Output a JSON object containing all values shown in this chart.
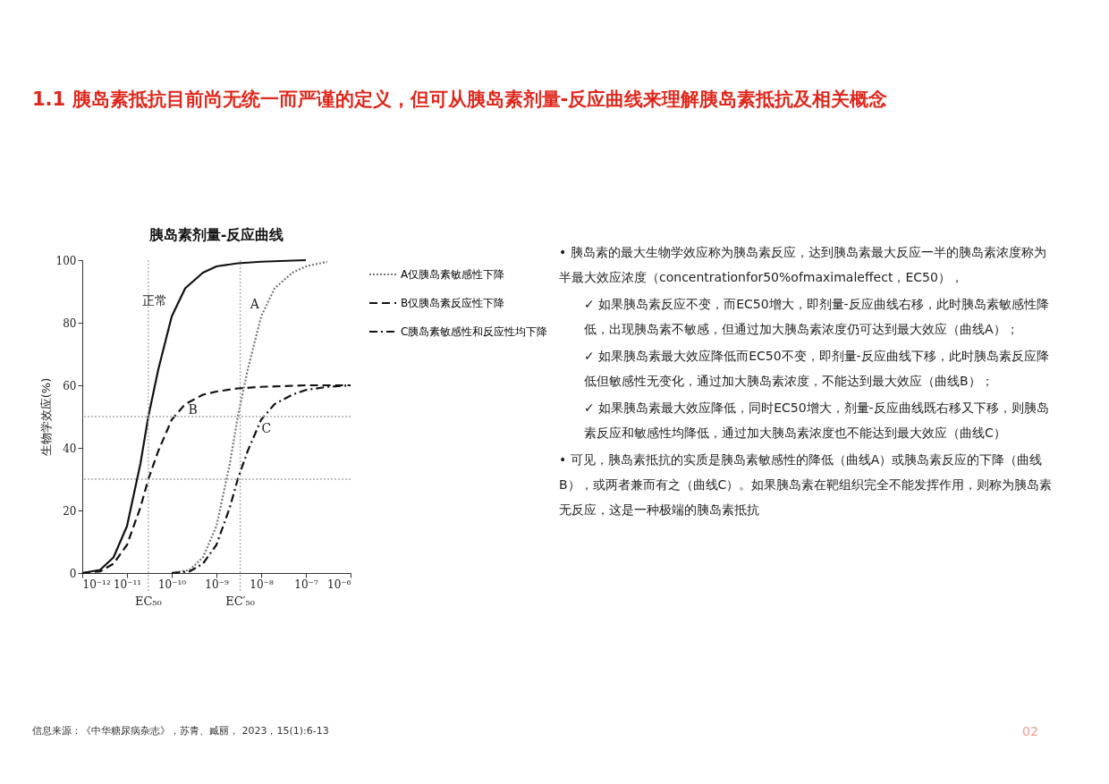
{
  "chart_data": {
    "type": "line",
    "title": "胰岛素剂量-反应曲线",
    "ylabel": "生物学效应(%)",
    "xlim": [
      1e-12,
      1e-06
    ],
    "xticks": [
      {
        "value": 1e-12,
        "label": "10⁻¹²"
      },
      {
        "value": 1e-11,
        "label": "10⁻¹¹"
      },
      {
        "value": 1e-10,
        "label": "10⁻¹⁰"
      },
      {
        "value": 1e-09,
        "label": "10⁻⁹"
      },
      {
        "value": 1e-08,
        "label": "10⁻⁸"
      },
      {
        "value": 1e-07,
        "label": "10⁻⁷"
      },
      {
        "value": 1e-06,
        "label": "10⁻⁶"
      }
    ],
    "ylim": [
      0,
      100
    ],
    "yticks": [
      0,
      20,
      40,
      60,
      80,
      100
    ],
    "log": "x",
    "grid": false,
    "legend": "right",
    "marker": "none",
    "series": [
      {
        "color": "#111111",
        "line_style": "solid",
        "x": [
          1e-12,
          2.5e-12,
          5e-12,
          1e-11,
          2e-11,
          3e-11,
          5e-11,
          1e-10,
          2e-10,
          5e-10,
          1e-09,
          3e-09,
          1e-08,
          1e-07
        ],
        "values": [
          0,
          1,
          5,
          15,
          35,
          50,
          65,
          82,
          91,
          96,
          98,
          99,
          99.5,
          100
        ]
      },
      {
        "name": "A仅胰岛素敏感性下降",
        "color": "#777777",
        "line_style": "dotted",
        "x": [
          1e-10,
          2.5e-10,
          5e-10,
          1e-09,
          2e-09,
          3e-09,
          5e-09,
          1e-08,
          2e-08,
          5e-08,
          1e-07,
          3e-07
        ],
        "values": [
          0,
          1,
          5,
          15,
          35,
          50,
          65,
          82,
          91,
          96,
          98,
          99.5
        ]
      },
      {
        "name": "B仅胰岛素反应性下降",
        "color": "#111111",
        "line_style": "dashed",
        "x": [
          1e-12,
          2.5e-12,
          5e-12,
          1e-11,
          2e-11,
          3e-11,
          5e-11,
          1e-10,
          2e-10,
          5e-10,
          1e-09,
          3e-09,
          1e-08,
          1e-07,
          1e-06
        ],
        "values": [
          0,
          0.5,
          3,
          9,
          21,
          30,
          39,
          49,
          54,
          57,
          58,
          59,
          59.5,
          60,
          60
        ]
      },
      {
        "name": "C胰岛素敏感性和反应性均下降",
        "color": "#111111",
        "line_style": "dashdot",
        "x": [
          1e-10,
          2.5e-10,
          5e-10,
          1e-09,
          2e-09,
          3e-09,
          5e-09,
          1e-08,
          2e-08,
          5e-08,
          1e-07,
          3e-07,
          1e-06
        ],
        "values": [
          0,
          0.5,
          3,
          9,
          21,
          30,
          39,
          49,
          54,
          57,
          58.5,
          59.5,
          60
        ]
      }
    ],
    "ref_lines": [
      {
        "axis": "y",
        "value": 50,
        "color": "#aaaaaa",
        "line_style": "dotted"
      },
      {
        "axis": "y",
        "value": 30,
        "color": "#aaaaaa",
        "line_style": "dotted"
      },
      {
        "axis": "x",
        "value": 3e-11,
        "label": "EC₅₀",
        "color": "#aaaaaa",
        "line_style": "dotted"
      },
      {
        "axis": "x",
        "value": 3.4e-09,
        "label": "EC′₅₀",
        "color": "#aaaaaa",
        "line_style": "dotted"
      }
    ],
    "annotations": [
      "正常",
      "A",
      "B",
      "C",
      "1.1 胰岛素抵抗目前尚无统一而严谨的定义，但可从胰岛素剂量-反应曲线来理解胰岛素抵抗及相关概念",
      "• 胰岛素的最大生物学效应称为胰岛素反应，达到胰岛素最大反应一半的胰岛素浓度称为半最大效应浓度（concentrationfor50%ofmaximaleffect，EC50），",
      "✓ 如果胰岛素反应不变，而EC50增大，即剂量-反应曲线右移，此时胰岛素敏感性降低，出现胰岛素不敏感，但通过加大胰岛素浓度仍可达到最大效应（曲线A）；",
      "✓ 如果胰岛素最大效应降低而EC50不变，即剂量-反应曲线下移，此时胰岛素反应降低但敏感性无变化，通过加大胰岛素浓度，不能达到最大效应（曲线B）；",
      "✓ 如果胰岛素最大效应降低，同时EC50增大，剂量-反应曲线既右移又下移，则胰岛素反应和敏感性均降低，通过加大胰岛素浓度也不能达到最大效应（曲线C）",
      "• 可见，胰岛素抵抗的实质是胰岛素敏感性的降低（曲线A）或胰岛素反应的下降（曲线B），或两者兼而有之（曲线C）。如果胰岛素在靶组织完全不能发挥作用，则称为胰岛素无反应，这是一种极端的胰岛素抵抗",
      "信息来源：《中华糖尿病杂志》，苏青、臧丽， 2023，15(1):6-13",
      "02"
    ]
  }
}
